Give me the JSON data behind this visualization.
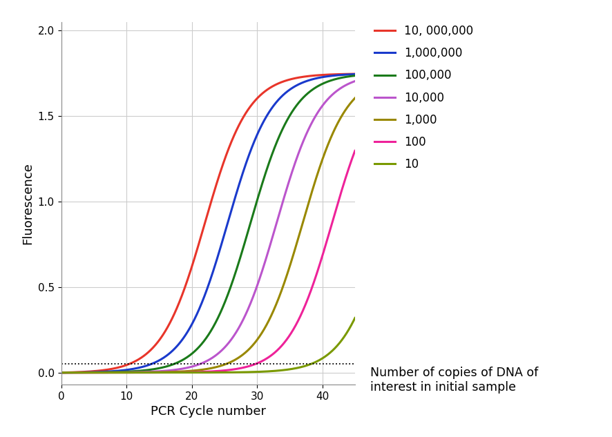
{
  "xlabel": "PCR Cycle number",
  "ylabel": "Fluorescence",
  "xlim": [
    0,
    45
  ],
  "ylim": [
    -0.07,
    2.05
  ],
  "yticks": [
    0,
    0.5,
    1,
    1.5,
    2
  ],
  "xticks": [
    0,
    10,
    20,
    30,
    40
  ],
  "threshold_y": 0.05,
  "series": [
    {
      "label": "10, 000,000",
      "color": "#e8352a",
      "midpoint": 22.0,
      "k": 0.3,
      "ymax": 1.75
    },
    {
      "label": "1,000,000",
      "color": "#1a3acc",
      "midpoint": 25.5,
      "k": 0.3,
      "ymax": 1.75
    },
    {
      "label": "100,000",
      "color": "#1a7a1a",
      "midpoint": 29.0,
      "k": 0.3,
      "ymax": 1.75
    },
    {
      "label": "10,000",
      "color": "#bb55cc",
      "midpoint": 33.0,
      "k": 0.3,
      "ymax": 1.75
    },
    {
      "label": "1,000",
      "color": "#998800",
      "midpoint": 37.0,
      "k": 0.3,
      "ymax": 1.75
    },
    {
      "label": "100",
      "color": "#ee2299",
      "midpoint": 41.5,
      "k": 0.3,
      "ymax": 1.75
    },
    {
      "label": "10",
      "color": "#7a9900",
      "midpoint": 50.0,
      "k": 0.3,
      "ymax": 1.75
    }
  ],
  "legend_title": "Number of copies of DNA of\ninterest in initial sample",
  "background_color": "#ffffff",
  "grid_color": "#cccccc",
  "figsize": [
    8.86,
    6.33
  ],
  "dpi": 100
}
